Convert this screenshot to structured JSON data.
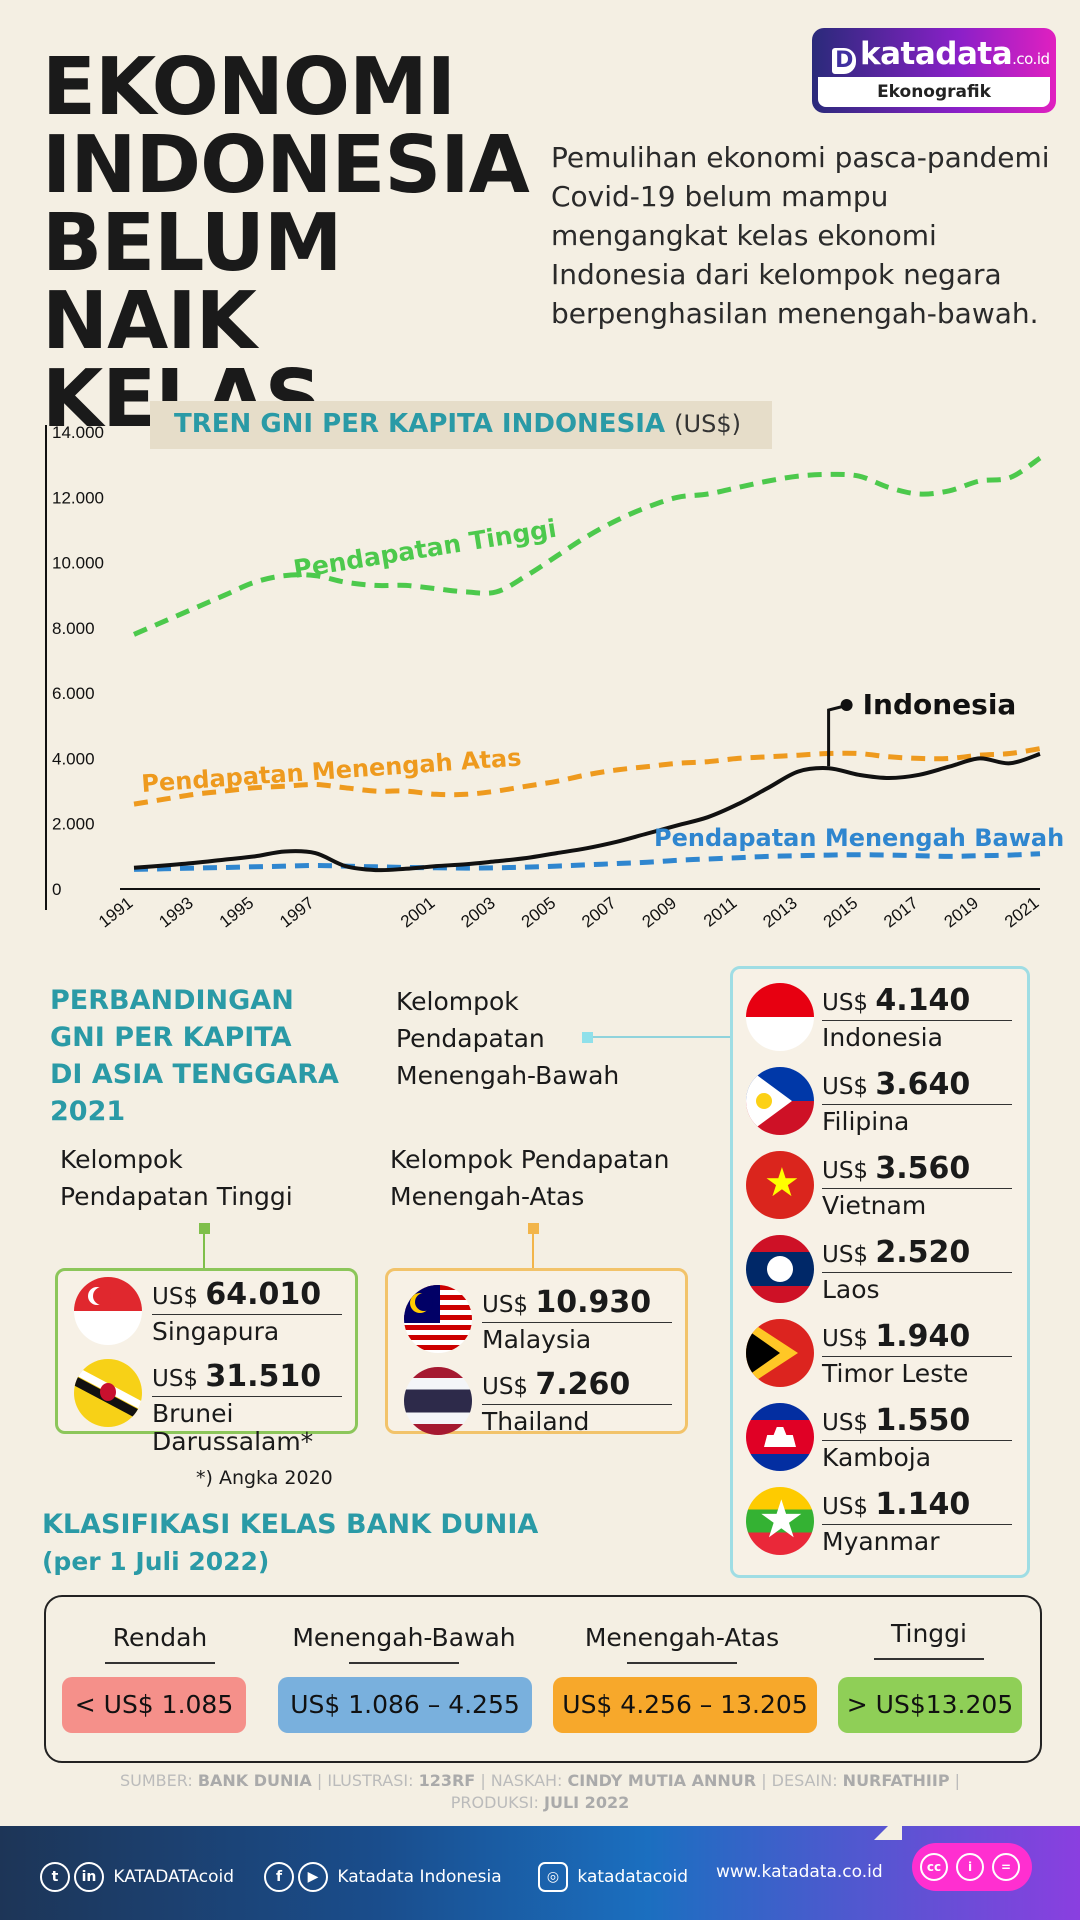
{
  "header": {
    "title_lines": [
      "EKONOMI",
      "INDONESIA",
      "BELUM",
      "NAIK KELAS"
    ],
    "intro": "Pemulihan ekonomi pasca-pandemi Covid-19 belum mampu mengangkat kelas ekonomi Indonesia dari kelompok negara berpenghasilan menengah-bawah.",
    "logo_brand": "katadata",
    "logo_suffix": ".co.id",
    "logo_sub": "Ekonografik"
  },
  "chart_data": {
    "type": "line",
    "title": "TREN GNI PER KAPITA INDONESIA",
    "unit": "(US$)",
    "x": [
      1991,
      1992,
      1993,
      1994,
      1995,
      1996,
      1997,
      1998,
      1999,
      2000,
      2001,
      2002,
      2003,
      2004,
      2005,
      2006,
      2007,
      2008,
      2009,
      2010,
      2011,
      2012,
      2013,
      2014,
      2015,
      2016,
      2017,
      2018,
      2019,
      2020,
      2021
    ],
    "x_tick_labels": [
      "1991",
      "1993",
      "1995",
      "1997",
      "2001",
      "2003",
      "2005",
      "2007",
      "2009",
      "2011",
      "2013",
      "2015",
      "2017",
      "2019",
      "2021"
    ],
    "ylim": [
      0,
      14000
    ],
    "y_tick_labels": [
      "0",
      "2.000",
      "4.000",
      "6.000",
      "8.000",
      "10.000",
      "12.000",
      "14.000"
    ],
    "y_ticks": [
      0,
      2000,
      4000,
      6000,
      8000,
      10000,
      12000,
      14000
    ],
    "colors": {
      "tinggi": "#4cc94c",
      "atas": "#ee9a1e",
      "bawah": "#2f86cf",
      "indonesia": "#111111"
    },
    "series": [
      {
        "key": "tinggi",
        "name": "Pendapatan Tinggi",
        "dashed": true,
        "values": [
          7800,
          8200,
          8600,
          9000,
          9400,
          9600,
          9600,
          9400,
          9300,
          9300,
          9200,
          9100,
          9100,
          9600,
          10200,
          10800,
          11300,
          11700,
          12000,
          12100,
          12300,
          12500,
          12650,
          12700,
          12650,
          12300,
          12100,
          12200,
          12500,
          12600,
          13200
        ]
      },
      {
        "key": "atas",
        "name": "Pendapatan Menengah Atas",
        "dashed": true,
        "values": [
          2600,
          2750,
          2900,
          3000,
          3100,
          3150,
          3200,
          3100,
          3000,
          3000,
          2900,
          2900,
          3000,
          3150,
          3300,
          3500,
          3650,
          3750,
          3850,
          3900,
          4000,
          4050,
          4100,
          4150,
          4150,
          4050,
          4000,
          4000,
          4100,
          4150,
          4300
        ]
      },
      {
        "key": "bawah",
        "name": "Pendapatan Menengah Bawah",
        "dashed": true,
        "values": [
          600,
          620,
          640,
          660,
          680,
          700,
          720,
          700,
          680,
          660,
          650,
          640,
          650,
          670,
          700,
          740,
          780,
          820,
          880,
          920,
          960,
          1000,
          1020,
          1040,
          1050,
          1040,
          1020,
          1000,
          1020,
          1040,
          1080
        ]
      },
      {
        "key": "indonesia",
        "name": "Indonesia",
        "dashed": false,
        "values": [
          650,
          720,
          800,
          900,
          1000,
          1150,
          1100,
          700,
          580,
          620,
          700,
          760,
          850,
          950,
          1100,
          1250,
          1450,
          1700,
          1950,
          2200,
          2600,
          3100,
          3600,
          3700,
          3500,
          3400,
          3500,
          3750,
          4000,
          3850,
          4140
        ]
      }
    ]
  },
  "comparison": {
    "title_lines": [
      "PERBANDINGAN",
      "GNI PER KAPITA",
      "DI ASIA TENGGARA",
      "2021"
    ],
    "high": {
      "label_lines": [
        "Kelompok",
        "Pendapatan Tinggi"
      ],
      "items": [
        {
          "currency": "US$",
          "value": "64.010",
          "name": "Singapura"
        },
        {
          "currency": "US$",
          "value": "31.510",
          "name": "Brunei Darussalam*"
        }
      ],
      "note": "*) Angka 2020"
    },
    "upper": {
      "label_lines": [
        "Kelompok Pendapatan",
        "Menengah-Atas"
      ],
      "items": [
        {
          "currency": "US$",
          "value": "10.930",
          "name": "Malaysia"
        },
        {
          "currency": "US$",
          "value": "7.260",
          "name": "Thailand"
        }
      ]
    },
    "lower": {
      "label_lines": [
        "Kelompok",
        "Pendapatan",
        "Menengah-Bawah"
      ],
      "items": [
        {
          "currency": "US$",
          "value": "4.140",
          "name": "Indonesia"
        },
        {
          "currency": "US$",
          "value": "3.640",
          "name": "Filipina"
        },
        {
          "currency": "US$",
          "value": "3.560",
          "name": "Vietnam"
        },
        {
          "currency": "US$",
          "value": "2.520",
          "name": "Laos"
        },
        {
          "currency": "US$",
          "value": "1.940",
          "name": "Timor Leste"
        },
        {
          "currency": "US$",
          "value": "1.550",
          "name": "Kamboja"
        },
        {
          "currency": "US$",
          "value": "1.140",
          "name": "Myanmar"
        }
      ]
    }
  },
  "classification": {
    "title": "KLASIFIKASI KELAS BANK DUNIA",
    "subtitle": "(per 1 Juli 2022)",
    "classes": [
      {
        "name": "Rendah",
        "range": "< US$ 1.085",
        "color": "#f5908a"
      },
      {
        "name": "Menengah-Bawah",
        "range": "US$ 1.086 – 4.255",
        "color": "#79b0dd"
      },
      {
        "name": "Menengah-Atas",
        "range": "US$ 4.256 – 13.205",
        "color": "#f7a82b"
      },
      {
        "name": "Tinggi",
        "range": "> US$13.205",
        "color": "#8fcf57"
      }
    ]
  },
  "credits": {
    "line1_parts": [
      "SUMBER: ",
      "BANK DUNIA",
      " | ILUSTRASI: ",
      "123RF",
      " | NASKAH: ",
      "CINDY MUTIA ANNUR",
      " | DESAIN: ",
      "NURFATHIIP",
      " |"
    ],
    "line2_parts": [
      "PRODUKSI: ",
      "JULI 2022"
    ]
  },
  "footer": {
    "twitter_ig_handle": "KATADATAcoid",
    "fb_yt_name": "Katadata Indonesia",
    "instagram": "katadatacoid",
    "website": "www.katadata.co.id",
    "license_icons": [
      "cc-icon",
      "by-icon",
      "nd-icon"
    ]
  }
}
